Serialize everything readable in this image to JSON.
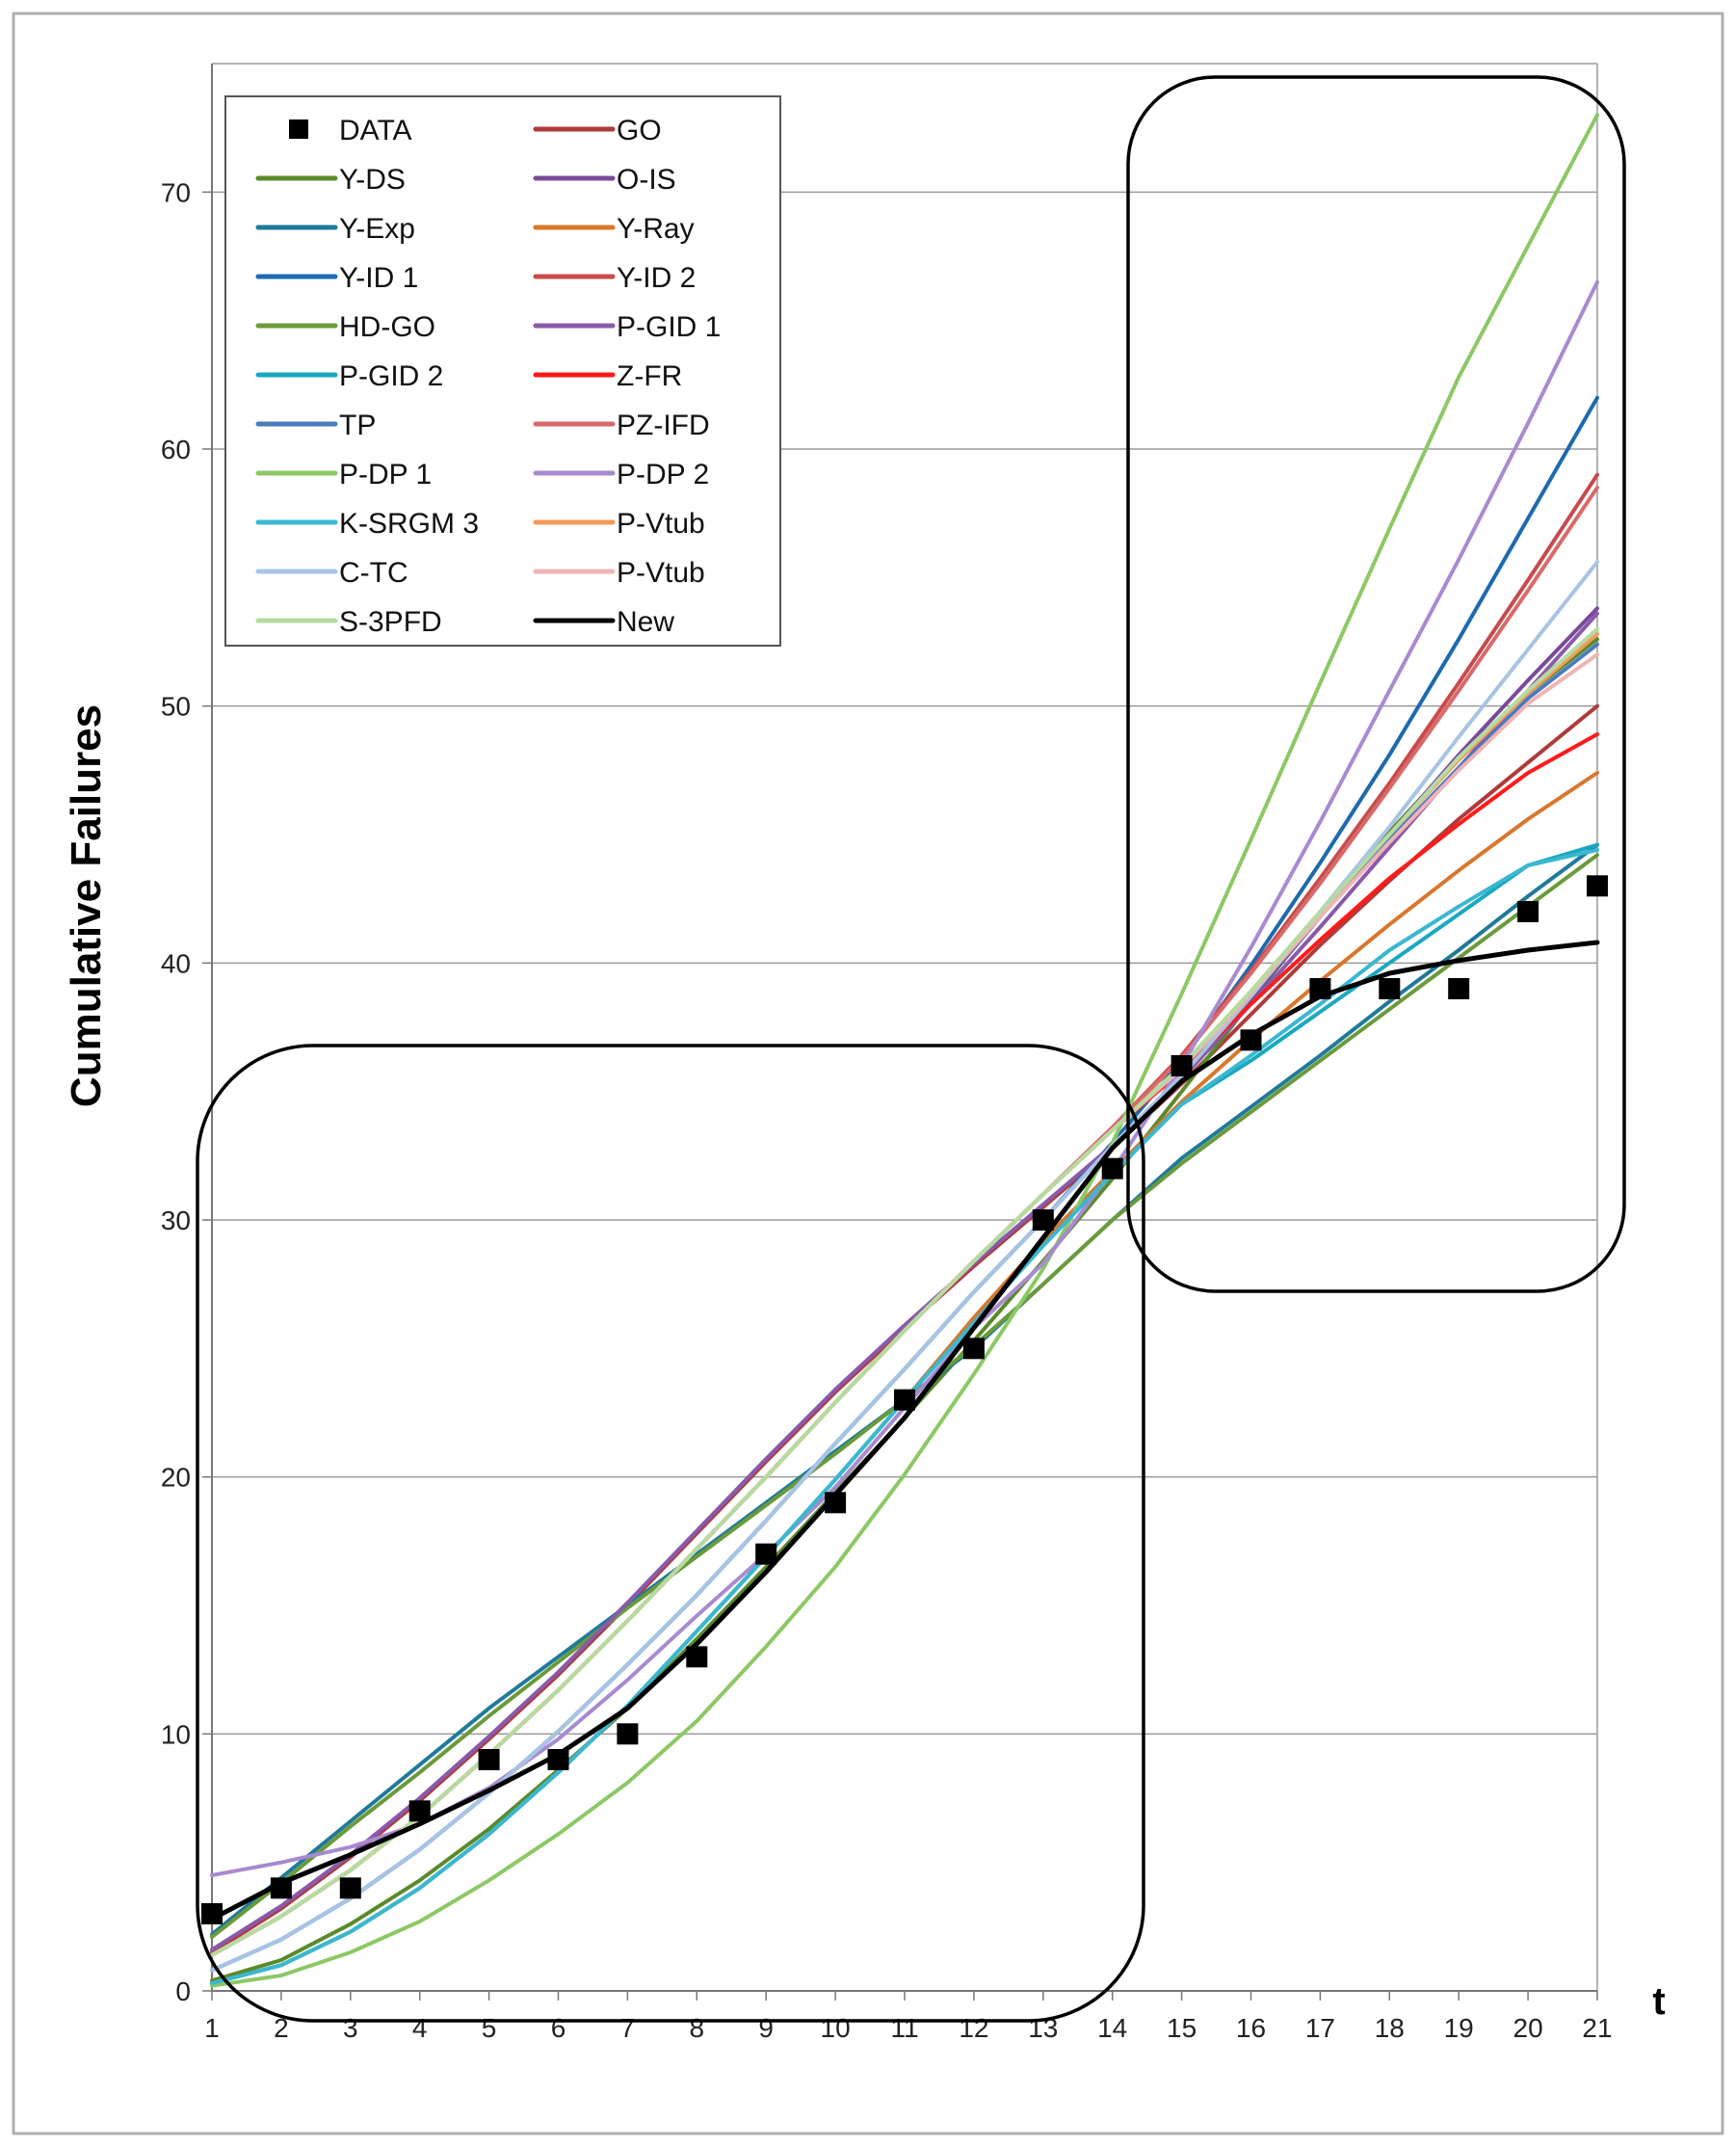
{
  "chart_data": {
    "type": "line",
    "title": "",
    "xlabel": "t",
    "ylabel": "Cumulative Failures",
    "x": [
      1,
      2,
      3,
      4,
      5,
      6,
      7,
      8,
      9,
      10,
      11,
      12,
      13,
      14,
      15,
      16,
      17,
      18,
      19,
      20,
      21
    ],
    "xlim": [
      1,
      21
    ],
    "ylim": [
      0,
      75
    ],
    "yticks": [
      0,
      10,
      20,
      30,
      40,
      50,
      60,
      70
    ],
    "grid": true,
    "legend_position": "top-left",
    "data_points": {
      "name": "DATA",
      "marker": "square",
      "color": "#000000",
      "values": [
        3,
        4,
        4,
        7,
        9,
        9,
        10,
        13,
        17,
        19,
        23,
        25,
        30,
        32,
        36,
        37,
        39,
        39,
        39,
        42,
        43
      ]
    },
    "series": [
      {
        "name": "GO",
        "color": "#b03a3a",
        "values": [
          1.5,
          3.2,
          5.2,
          7.4,
          9.8,
          12.3,
          15.0,
          17.8,
          20.6,
          23.3,
          25.8,
          28.2,
          30.5,
          32.8,
          35.3,
          38.0,
          40.7,
          43.2,
          45.6,
          47.8,
          50.0
        ]
      },
      {
        "name": "Y-DS",
        "color": "#5a8a2a",
        "values": [
          0.4,
          1.2,
          2.6,
          4.3,
          6.3,
          8.6,
          11.0,
          13.7,
          16.5,
          19.4,
          22.3,
          25.3,
          28.4,
          31.6,
          35.0,
          38.5,
          41.9,
          45.1,
          48.0,
          50.5,
          52.6
        ]
      },
      {
        "name": "O-IS",
        "color": "#7a4a9a",
        "values": [
          1.6,
          3.3,
          5.3,
          7.5,
          9.9,
          12.4,
          15.1,
          17.9,
          20.7,
          23.4,
          25.9,
          28.3,
          30.6,
          32.9,
          35.6,
          38.6,
          41.8,
          45.0,
          48.1,
          51.0,
          53.8
        ]
      },
      {
        "name": "Y-Exp",
        "color": "#1f7a9a",
        "values": [
          2.2,
          4.4,
          6.6,
          8.8,
          11.0,
          13.0,
          15.0,
          17.0,
          19.0,
          21.0,
          23.0,
          25.0,
          27.5,
          30.0,
          32.4,
          34.4,
          36.4,
          38.5,
          40.5,
          42.6,
          44.6
        ]
      },
      {
        "name": "Y-Ray",
        "color": "#d9772b",
        "values": [
          0.3,
          1.0,
          2.3,
          4.0,
          6.1,
          8.5,
          11.1,
          14.0,
          16.9,
          19.9,
          23.0,
          26.2,
          29.2,
          31.9,
          34.6,
          37.0,
          39.3,
          41.5,
          43.6,
          45.6,
          47.4
        ]
      },
      {
        "name": "Y-ID 1",
        "color": "#1c6ab0",
        "values": [
          0.8,
          2.0,
          3.6,
          5.5,
          7.7,
          10.1,
          12.7,
          15.4,
          18.3,
          21.3,
          24.2,
          27.2,
          30.0,
          33.0,
          36.2,
          39.9,
          43.9,
          48.1,
          52.6,
          57.3,
          62.0
        ]
      },
      {
        "name": "Y-ID 2",
        "color": "#c94a4a",
        "values": [
          1.4,
          2.9,
          4.7,
          6.8,
          9.2,
          11.7,
          14.4,
          17.2,
          20.0,
          22.9,
          25.7,
          28.4,
          31.0,
          33.6,
          36.4,
          39.7,
          43.3,
          47.0,
          50.9,
          54.9,
          59.0
        ]
      },
      {
        "name": "HD-GO",
        "color": "#6a9a3a",
        "values": [
          2.1,
          4.2,
          6.4,
          8.5,
          10.7,
          12.8,
          14.9,
          16.9,
          18.9,
          20.9,
          23.0,
          25.1,
          27.5,
          30.0,
          32.2,
          34.2,
          36.2,
          38.2,
          40.2,
          42.2,
          44.2
        ]
      },
      {
        "name": "P-GID 1",
        "color": "#8a5aaa",
        "values": [
          1.6,
          3.3,
          5.3,
          7.5,
          9.9,
          12.4,
          15.1,
          17.9,
          20.7,
          23.4,
          25.9,
          28.3,
          30.6,
          32.9,
          35.5,
          38.4,
          41.4,
          44.5,
          47.6,
          50.6,
          53.6
        ]
      },
      {
        "name": "P-GID 2",
        "color": "#1aa8c0",
        "values": [
          0.3,
          1.0,
          2.3,
          4.0,
          6.1,
          8.5,
          11.1,
          14.0,
          16.9,
          19.9,
          23.0,
          26.0,
          29.0,
          31.8,
          34.5,
          36.2,
          38.1,
          40.0,
          41.9,
          43.8,
          44.6
        ]
      },
      {
        "name": "Z-FR",
        "color": "#ff1a1a",
        "values": [
          1.4,
          2.9,
          4.7,
          6.8,
          9.2,
          11.7,
          14.4,
          17.2,
          20.0,
          22.9,
          25.7,
          28.4,
          31.0,
          33.5,
          35.8,
          38.4,
          40.9,
          43.3,
          45.4,
          47.4,
          48.9
        ]
      },
      {
        "name": "TP",
        "color": "#4a7ac0",
        "values": [
          0.8,
          2.0,
          3.6,
          5.5,
          7.7,
          10.1,
          12.7,
          15.4,
          18.3,
          21.3,
          24.2,
          27.2,
          30.0,
          32.9,
          35.6,
          38.7,
          41.8,
          44.8,
          47.6,
          50.3,
          52.4
        ]
      },
      {
        "name": "PZ-IFD",
        "color": "#d86a6a",
        "values": [
          1.4,
          2.9,
          4.7,
          6.8,
          9.2,
          11.7,
          14.4,
          17.2,
          20.0,
          22.9,
          25.7,
          28.4,
          31.0,
          33.6,
          36.3,
          39.6,
          43.1,
          46.8,
          50.6,
          54.5,
          58.5
        ]
      },
      {
        "name": "P-DP 1",
        "color": "#8cc864",
        "values": [
          0.2,
          0.6,
          1.5,
          2.7,
          4.3,
          6.1,
          8.1,
          10.5,
          13.4,
          16.5,
          20.1,
          24.0,
          28.1,
          33.0,
          38.8,
          44.8,
          50.9,
          56.9,
          62.8,
          67.9,
          73.0
        ]
      },
      {
        "name": "P-DP 2",
        "color": "#a98ad0",
        "values": [
          4.5,
          5.0,
          5.6,
          6.5,
          7.9,
          9.8,
          12.1,
          14.6,
          17.0,
          19.6,
          22.7,
          25.8,
          28.3,
          31.9,
          36.0,
          40.6,
          45.5,
          50.6,
          55.7,
          61.0,
          66.5
        ]
      },
      {
        "name": "K-SRGM 3",
        "color": "#3ab8d0",
        "values": [
          0.3,
          1.0,
          2.3,
          4.0,
          6.1,
          8.5,
          11.1,
          14.0,
          16.9,
          19.9,
          23.0,
          26.0,
          29.0,
          31.8,
          34.5,
          36.4,
          38.4,
          40.5,
          42.2,
          43.8,
          44.4
        ]
      },
      {
        "name": "P-Vtub",
        "color": "#f49a5a",
        "values": [
          1.4,
          2.9,
          4.7,
          6.8,
          9.2,
          11.7,
          14.4,
          17.2,
          20.0,
          22.9,
          25.7,
          28.4,
          31.0,
          33.5,
          36.0,
          38.9,
          42.0,
          45.0,
          47.9,
          50.5,
          52.8
        ]
      },
      {
        "name": "C-TC",
        "color": "#a8c4e4",
        "values": [
          0.8,
          2.0,
          3.6,
          5.5,
          7.7,
          10.1,
          12.7,
          15.4,
          18.3,
          21.3,
          24.2,
          27.2,
          30.0,
          32.9,
          35.6,
          38.7,
          42.0,
          45.3,
          48.8,
          52.2,
          55.6
        ]
      },
      {
        "name": "P-Vtub",
        "color": "#f0b4b4",
        "values": [
          1.4,
          2.9,
          4.7,
          6.8,
          9.2,
          11.7,
          14.4,
          17.2,
          20.0,
          22.9,
          25.7,
          28.4,
          31.0,
          33.5,
          35.9,
          38.8,
          41.8,
          44.7,
          47.5,
          50.1,
          52.0
        ]
      },
      {
        "name": "S-3PFD",
        "color": "#b4dca0",
        "values": [
          1.4,
          2.9,
          4.7,
          6.8,
          9.2,
          11.7,
          14.4,
          17.2,
          20.0,
          22.9,
          25.7,
          28.4,
          31.0,
          33.5,
          36.0,
          38.9,
          42.0,
          45.0,
          48.0,
          50.6,
          53.0
        ]
      },
      {
        "name": "New",
        "color": "#000000",
        "values": [
          2.8,
          4.2,
          5.3,
          6.5,
          7.8,
          9.2,
          11.0,
          13.5,
          16.3,
          19.3,
          22.3,
          25.8,
          29.3,
          32.8,
          35.4,
          37.2,
          38.7,
          39.6,
          40.1,
          40.5,
          40.8
        ]
      }
    ]
  }
}
